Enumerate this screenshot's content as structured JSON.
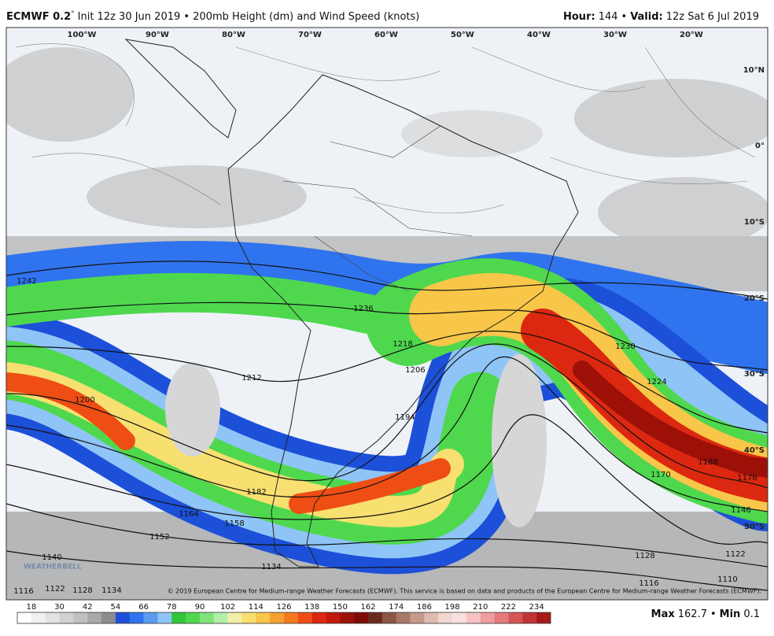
{
  "header": {
    "model": "ECMWF 0.2",
    "degree": "°",
    "description": "Init 12z 30 Jun 2019 • 200mb Height (dm) and Wind Speed (knots)",
    "hour_label": "Hour:",
    "hour": "144",
    "separator": "•",
    "valid_label": "Valid:",
    "valid": "12z Sat 6 Jul 2019"
  },
  "map": {
    "longitude_labels": [
      "100°W",
      "90°W",
      "80°W",
      "70°W",
      "60°W",
      "50°W",
      "40°W",
      "30°W",
      "20°W"
    ],
    "latitude_labels": [
      "10°N",
      "0°",
      "10°S",
      "20°S",
      "30°S",
      "40°S",
      "50°S"
    ],
    "contour_labels": [
      "1242",
      "1236",
      "1218",
      "1212",
      "1206",
      "1200",
      "1194",
      "1230",
      "1224",
      "1188",
      "1176",
      "1170",
      "1182",
      "1164",
      "1158",
      "1152",
      "1146",
      "1140",
      "1134",
      "1128",
      "1122",
      "1116",
      "1122",
      "1128",
      "1134",
      "1116",
      "1110"
    ],
    "copyright": "© 2019 European Centre for Medium-range Weather Forecasts (ECMWF). This service is based on data and products of the European Centre for Medium-range Weather Forecasts (ECMWF).",
    "logo": "WEATHERBELL"
  },
  "colorbar": {
    "labels": [
      18,
      30,
      42,
      54,
      66,
      78,
      90,
      102,
      114,
      126,
      138,
      150,
      162,
      174,
      186,
      198,
      210,
      222,
      234
    ],
    "colors": [
      "#ffffff",
      "#f0f0f0",
      "#e2e2e2",
      "#d2d2d2",
      "#c0c0c0",
      "#a8a8a8",
      "#8c8c8c",
      "#1c50d8",
      "#2f74ee",
      "#5b9cf2",
      "#8fc4f7",
      "#2fc63a",
      "#4fd84e",
      "#7fe47a",
      "#b3efa8",
      "#f2f0a8",
      "#f8e070",
      "#f8c648",
      "#f5a030",
      "#f47a20",
      "#ee4e14",
      "#dc2810",
      "#c01a0c",
      "#9c1008",
      "#7c0c06",
      "#6a2a1c",
      "#8a5646",
      "#a87868",
      "#c49a8a",
      "#dcbcb0",
      "#f0d8d0",
      "#fbe0e0",
      "#f6c2c2",
      "#ee9e9e",
      "#e47a7a",
      "#d45656",
      "#c03434",
      "#a61a1a"
    ]
  },
  "stats": {
    "max_label": "Max",
    "max": 162.7,
    "separator": "•",
    "min_label": "Min",
    "min": 0.1
  }
}
